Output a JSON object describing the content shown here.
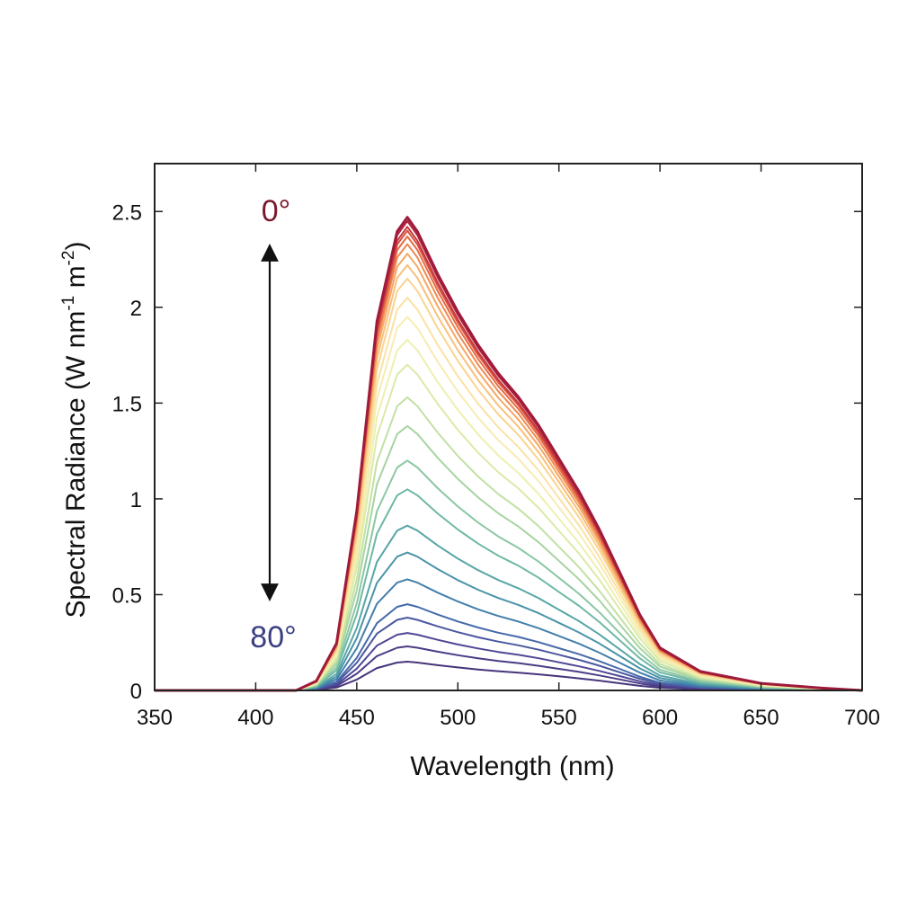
{
  "chart_data": {
    "type": "line",
    "xlabel": "Wavelength (nm)",
    "ylabel_parts": [
      "Spectral Radiance (W nm",
      "-1",
      " m",
      "-2",
      ")"
    ],
    "xlim": [
      350,
      700
    ],
    "ylim": [
      0,
      2.75
    ],
    "x_ticks": [
      350,
      400,
      450,
      500,
      550,
      600,
      650,
      700
    ],
    "y_ticks": [
      0,
      0.5,
      1,
      1.5,
      2,
      2.5
    ],
    "y_tick_labels": [
      "0",
      "0.5",
      "1",
      "1.5",
      "2",
      "2.5"
    ],
    "grid": false,
    "x": [
      350,
      400,
      420,
      430,
      440,
      450,
      460,
      470,
      475,
      480,
      490,
      500,
      510,
      520,
      530,
      540,
      550,
      560,
      570,
      580,
      590,
      600,
      620,
      650,
      680,
      700
    ],
    "profile": [
      0,
      0,
      0,
      0.02,
      0.1,
      0.38,
      0.78,
      0.97,
      1.0,
      0.97,
      0.88,
      0.8,
      0.73,
      0.67,
      0.62,
      0.56,
      0.49,
      0.42,
      0.34,
      0.25,
      0.16,
      0.09,
      0.04,
      0.015,
      0.005,
      0
    ],
    "series_peaks": [
      2.47,
      2.45,
      2.42,
      2.4,
      2.37,
      2.33,
      2.28,
      2.22,
      2.15,
      2.05,
      1.95,
      1.83,
      1.7,
      1.53,
      1.38,
      1.2,
      1.05,
      0.86,
      0.72,
      0.58,
      0.45,
      0.38,
      0.3,
      0.23,
      0.15
    ],
    "series_colors": [
      "#9e1b3b",
      "#b2253f",
      "#c6393f",
      "#d9523f",
      "#e66b45",
      "#ef8a54",
      "#f5a765",
      "#f8c07a",
      "#fad48f",
      "#fbe2a4",
      "#f7ecb2",
      "#eef0b0",
      "#dbeaa8",
      "#c2e0a3",
      "#a7d4a2",
      "#8bc7a3",
      "#6fb8a5",
      "#58a6a6",
      "#4a93a8",
      "#437fab",
      "#456aa9",
      "#4b57a0",
      "#4f4795",
      "#4c3c86",
      "#46357a"
    ],
    "annotations": {
      "top": {
        "text": "0°",
        "color": "#7a1a2c"
      },
      "bottom": {
        "text": "80°",
        "color": "#3b3f80"
      }
    }
  }
}
